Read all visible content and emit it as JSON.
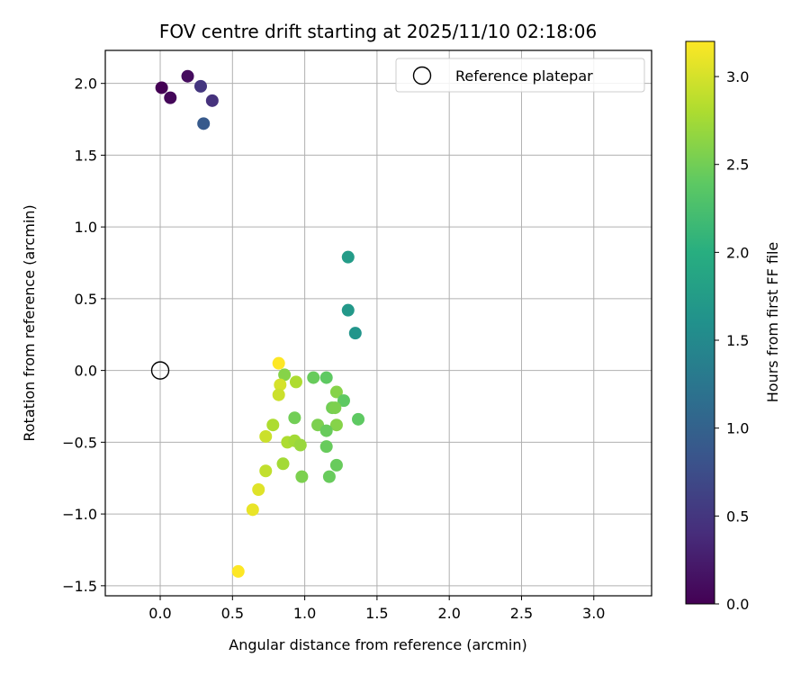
{
  "chart_data": {
    "type": "scatter",
    "title": "FOV centre drift starting at 2025/11/10 02:18:06",
    "xlabel": "Angular distance from reference (arcmin)",
    "ylabel": "Rotation from reference (arcmin)",
    "xlim": [
      -0.38,
      3.4
    ],
    "ylim": [
      -1.57,
      2.23
    ],
    "xticks": [
      0.0,
      0.5,
      1.0,
      1.5,
      2.0,
      2.5,
      3.0
    ],
    "xtick_labels": [
      "0.0",
      "0.5",
      "1.0",
      "1.5",
      "2.0",
      "2.5",
      "3.0"
    ],
    "yticks": [
      -1.5,
      -1.0,
      -0.5,
      0.0,
      0.5,
      1.0,
      1.5,
      2.0
    ],
    "ytick_labels": [
      "−1.5",
      "−1.0",
      "−0.5",
      "0.0",
      "0.5",
      "1.0",
      "1.5",
      "2.0"
    ],
    "grid": true,
    "legend": {
      "placement": "top-right",
      "entries": [
        "Reference platepar"
      ]
    },
    "reference_point": {
      "x": 0.0,
      "y": 0.0
    },
    "colorbar": {
      "label": "Hours from first FF file",
      "colormap": "viridis",
      "range": [
        0.0,
        3.2
      ],
      "ticks": [
        0.0,
        0.5,
        1.0,
        1.5,
        2.0,
        2.5,
        3.0
      ],
      "tick_labels": [
        "0.0",
        "0.5",
        "1.0",
        "1.5",
        "2.0",
        "2.5",
        "3.0"
      ]
    },
    "points": [
      {
        "x": 0.01,
        "y": 1.97,
        "hours": 0.0
      },
      {
        "x": 0.07,
        "y": 1.9,
        "hours": 0.05
      },
      {
        "x": 0.19,
        "y": 2.05,
        "hours": 0.1
      },
      {
        "x": 0.28,
        "y": 1.98,
        "hours": 0.5
      },
      {
        "x": 0.36,
        "y": 1.88,
        "hours": 0.45
      },
      {
        "x": 0.3,
        "y": 1.72,
        "hours": 0.9
      },
      {
        "x": 1.3,
        "y": 0.79,
        "hours": 1.75
      },
      {
        "x": 1.3,
        "y": 0.42,
        "hours": 1.7
      },
      {
        "x": 1.35,
        "y": 0.26,
        "hours": 1.65
      },
      {
        "x": 0.82,
        "y": 0.05,
        "hours": 3.2
      },
      {
        "x": 0.86,
        "y": -0.03,
        "hours": 2.6
      },
      {
        "x": 0.83,
        "y": -0.1,
        "hours": 3.0
      },
      {
        "x": 0.82,
        "y": -0.17,
        "hours": 2.95
      },
      {
        "x": 0.94,
        "y": -0.08,
        "hours": 2.8
      },
      {
        "x": 1.06,
        "y": -0.05,
        "hours": 2.45
      },
      {
        "x": 1.15,
        "y": -0.05,
        "hours": 2.4
      },
      {
        "x": 1.22,
        "y": -0.15,
        "hours": 2.6
      },
      {
        "x": 1.27,
        "y": -0.21,
        "hours": 2.4
      },
      {
        "x": 1.19,
        "y": -0.26,
        "hours": 2.5
      },
      {
        "x": 1.21,
        "y": -0.26,
        "hours": 2.55
      },
      {
        "x": 0.93,
        "y": -0.33,
        "hours": 2.5
      },
      {
        "x": 1.37,
        "y": -0.34,
        "hours": 2.4
      },
      {
        "x": 1.09,
        "y": -0.38,
        "hours": 2.55
      },
      {
        "x": 1.22,
        "y": -0.38,
        "hours": 2.6
      },
      {
        "x": 1.15,
        "y": -0.42,
        "hours": 2.45
      },
      {
        "x": 0.78,
        "y": -0.38,
        "hours": 2.8
      },
      {
        "x": 0.73,
        "y": -0.46,
        "hours": 2.95
      },
      {
        "x": 0.88,
        "y": -0.5,
        "hours": 2.8
      },
      {
        "x": 0.93,
        "y": -0.49,
        "hours": 2.75
      },
      {
        "x": 0.97,
        "y": -0.52,
        "hours": 2.7
      },
      {
        "x": 1.15,
        "y": -0.53,
        "hours": 2.45
      },
      {
        "x": 0.85,
        "y": -0.65,
        "hours": 2.75
      },
      {
        "x": 1.22,
        "y": -0.66,
        "hours": 2.45
      },
      {
        "x": 0.73,
        "y": -0.7,
        "hours": 2.9
      },
      {
        "x": 0.98,
        "y": -0.74,
        "hours": 2.55
      },
      {
        "x": 1.17,
        "y": -0.74,
        "hours": 2.45
      },
      {
        "x": 0.68,
        "y": -0.83,
        "hours": 3.05
      },
      {
        "x": 0.64,
        "y": -0.97,
        "hours": 3.1
      },
      {
        "x": 0.54,
        "y": -1.4,
        "hours": 3.2
      }
    ]
  }
}
